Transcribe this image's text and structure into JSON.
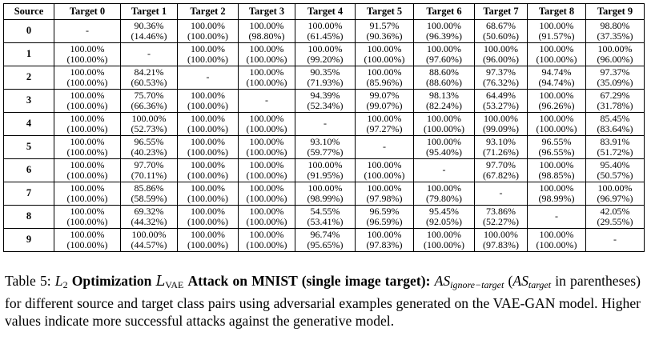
{
  "table": {
    "headers": [
      "Source",
      "Target 0",
      "Target 1",
      "Target 2",
      "Target 3",
      "Target 4",
      "Target 5",
      "Target 6",
      "Target 7",
      "Target 8",
      "Target 9"
    ],
    "rows": [
      {
        "source": "0",
        "cells": [
          {
            "dash": "-"
          },
          {
            "ignore": "90.36%",
            "target": "(14.46%)"
          },
          {
            "ignore": "100.00%",
            "target": "(100.00%)"
          },
          {
            "ignore": "100.00%",
            "target": "(98.80%)"
          },
          {
            "ignore": "100.00%",
            "target": "(61.45%)"
          },
          {
            "ignore": "91.57%",
            "target": "(90.36%)"
          },
          {
            "ignore": "100.00%",
            "target": "(96.39%)"
          },
          {
            "ignore": "68.67%",
            "target": "(50.60%)"
          },
          {
            "ignore": "100.00%",
            "target": "(91.57%)"
          },
          {
            "ignore": "98.80%",
            "target": "(37.35%)"
          }
        ]
      },
      {
        "source": "1",
        "cells": [
          {
            "ignore": "100.00%",
            "target": "(100.00%)"
          },
          {
            "dash": "-"
          },
          {
            "ignore": "100.00%",
            "target": "(100.00%)"
          },
          {
            "ignore": "100.00%",
            "target": "(100.00%)"
          },
          {
            "ignore": "100.00%",
            "target": "(99.20%)"
          },
          {
            "ignore": "100.00%",
            "target": "(100.00%)"
          },
          {
            "ignore": "100.00%",
            "target": "(97.60%)"
          },
          {
            "ignore": "100.00%",
            "target": "(96.00%)"
          },
          {
            "ignore": "100.00%",
            "target": "(100.00%)"
          },
          {
            "ignore": "100.00%",
            "target": "(96.00%)"
          }
        ]
      },
      {
        "source": "2",
        "cells": [
          {
            "ignore": "100.00%",
            "target": "(100.00%)"
          },
          {
            "ignore": "84.21%",
            "target": "(60.53%)"
          },
          {
            "dash": "-"
          },
          {
            "ignore": "100.00%",
            "target": "(100.00%)"
          },
          {
            "ignore": "90.35%",
            "target": "(71.93%)"
          },
          {
            "ignore": "100.00%",
            "target": "(85.96%)"
          },
          {
            "ignore": "88.60%",
            "target": "(88.60%)"
          },
          {
            "ignore": "97.37%",
            "target": "(76.32%)"
          },
          {
            "ignore": "94.74%",
            "target": "(94.74%)"
          },
          {
            "ignore": "97.37%",
            "target": "(35.09%)"
          }
        ]
      },
      {
        "source": "3",
        "cells": [
          {
            "ignore": "100.00%",
            "target": "(100.00%)"
          },
          {
            "ignore": "75.70%",
            "target": "(66.36%)"
          },
          {
            "ignore": "100.00%",
            "target": "(100.00%)"
          },
          {
            "dash": "-"
          },
          {
            "ignore": "94.39%",
            "target": "(52.34%)"
          },
          {
            "ignore": "99.07%",
            "target": "(99.07%)"
          },
          {
            "ignore": "98.13%",
            "target": "(82.24%)"
          },
          {
            "ignore": "64.49%",
            "target": "(53.27%)"
          },
          {
            "ignore": "100.00%",
            "target": "(96.26%)"
          },
          {
            "ignore": "67.29%",
            "target": "(31.78%)"
          }
        ]
      },
      {
        "source": "4",
        "cells": [
          {
            "ignore": "100.00%",
            "target": "(100.00%)"
          },
          {
            "ignore": "100.00%",
            "target": "(52.73%)"
          },
          {
            "ignore": "100.00%",
            "target": "(100.00%)"
          },
          {
            "ignore": "100.00%",
            "target": "(100.00%)"
          },
          {
            "dash": "-"
          },
          {
            "ignore": "100.00%",
            "target": "(97.27%)"
          },
          {
            "ignore": "100.00%",
            "target": "(100.00%)"
          },
          {
            "ignore": "100.00%",
            "target": "(99.09%)"
          },
          {
            "ignore": "100.00%",
            "target": "(100.00%)"
          },
          {
            "ignore": "85.45%",
            "target": "(83.64%)"
          }
        ]
      },
      {
        "source": "5",
        "cells": [
          {
            "ignore": "100.00%",
            "target": "(100.00%)"
          },
          {
            "ignore": "96.55%",
            "target": "(40.23%)"
          },
          {
            "ignore": "100.00%",
            "target": "(100.00%)"
          },
          {
            "ignore": "100.00%",
            "target": "(100.00%)"
          },
          {
            "ignore": "93.10%",
            "target": "(59.77%)"
          },
          {
            "dash": "-"
          },
          {
            "ignore": "100.00%",
            "target": "(95.40%)"
          },
          {
            "ignore": "93.10%",
            "target": "(71.26%)"
          },
          {
            "ignore": "96.55%",
            "target": "(96.55%)"
          },
          {
            "ignore": "83.91%",
            "target": "(51.72%)"
          }
        ]
      },
      {
        "source": "6",
        "cells": [
          {
            "ignore": "100.00%",
            "target": "(100.00%)"
          },
          {
            "ignore": "97.70%",
            "target": "(70.11%)"
          },
          {
            "ignore": "100.00%",
            "target": "(100.00%)"
          },
          {
            "ignore": "100.00%",
            "target": "(100.00%)"
          },
          {
            "ignore": "100.00%",
            "target": "(91.95%)"
          },
          {
            "ignore": "100.00%",
            "target": "(100.00%)"
          },
          {
            "dash": "-"
          },
          {
            "ignore": "97.70%",
            "target": "(67.82%)"
          },
          {
            "ignore": "100.00%",
            "target": "(98.85%)"
          },
          {
            "ignore": "95.40%",
            "target": "(50.57%)"
          }
        ]
      },
      {
        "source": "7",
        "cells": [
          {
            "ignore": "100.00%",
            "target": "(100.00%)"
          },
          {
            "ignore": "85.86%",
            "target": "(58.59%)"
          },
          {
            "ignore": "100.00%",
            "target": "(100.00%)"
          },
          {
            "ignore": "100.00%",
            "target": "(100.00%)"
          },
          {
            "ignore": "100.00%",
            "target": "(98.99%)"
          },
          {
            "ignore": "100.00%",
            "target": "(97.98%)"
          },
          {
            "ignore": "100.00%",
            "target": "(79.80%)"
          },
          {
            "dash": "-"
          },
          {
            "ignore": "100.00%",
            "target": "(98.99%)"
          },
          {
            "ignore": "100.00%",
            "target": "(96.97%)"
          }
        ]
      },
      {
        "source": "8",
        "cells": [
          {
            "ignore": "100.00%",
            "target": "(100.00%)"
          },
          {
            "ignore": "69.32%",
            "target": "(44.32%)"
          },
          {
            "ignore": "100.00%",
            "target": "(100.00%)"
          },
          {
            "ignore": "100.00%",
            "target": "(100.00%)"
          },
          {
            "ignore": "54.55%",
            "target": "(53.41%)"
          },
          {
            "ignore": "96.59%",
            "target": "(96.59%)"
          },
          {
            "ignore": "95.45%",
            "target": "(92.05%)"
          },
          {
            "ignore": "73.86%",
            "target": "(52.27%)"
          },
          {
            "dash": "-"
          },
          {
            "ignore": "42.05%",
            "target": "(29.55%)"
          }
        ]
      },
      {
        "source": "9",
        "cells": [
          {
            "ignore": "100.00%",
            "target": "(100.00%)"
          },
          {
            "ignore": "100.00%",
            "target": "(44.57%)"
          },
          {
            "ignore": "100.00%",
            "target": "(100.00%)"
          },
          {
            "ignore": "100.00%",
            "target": "(100.00%)"
          },
          {
            "ignore": "96.74%",
            "target": "(95.65%)"
          },
          {
            "ignore": "100.00%",
            "target": "(97.83%)"
          },
          {
            "ignore": "100.00%",
            "target": "(100.00%)"
          },
          {
            "ignore": "100.00%",
            "target": "(97.83%)"
          },
          {
            "ignore": "100.00%",
            "target": "(100.00%)"
          },
          {
            "dash": "-"
          }
        ]
      }
    ]
  },
  "caption": {
    "label": "Table 5:",
    "l2": "L",
    "l2_sub": "2",
    "bold_1": "Optimization",
    "loss": "L",
    "loss_sub": "VAE",
    "bold_2": "Attack on MNIST (single image target):",
    "as": "AS",
    "as_ignore_sub": "ignore−target",
    "as_target_sub": "target",
    "text_1": " in parentheses) for different source and target class pairs using adversarial examples generated on the VAE-GAN model.  Higher values indicate more successful attacks against the generative model."
  }
}
